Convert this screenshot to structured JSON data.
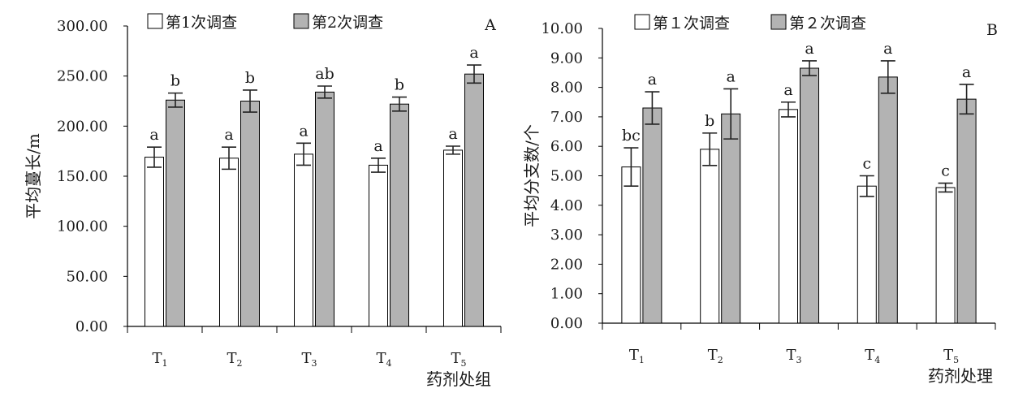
{
  "chart_data": [
    {
      "panel": "A",
      "type": "bar",
      "ylabel": "平均蔓长/m",
      "xlabel": "药剂处组",
      "ylim": [
        0,
        300
      ],
      "yticks": [
        "0.00",
        "50.00",
        "100.00",
        "150.00",
        "200.00",
        "250.00",
        "300.00"
      ],
      "categories": [
        {
          "base": "T",
          "sub": "1"
        },
        {
          "base": "T",
          "sub": "2"
        },
        {
          "base": "T",
          "sub": "3"
        },
        {
          "base": "T",
          "sub": "4"
        },
        {
          "base": "T",
          "sub": "5"
        }
      ],
      "series": [
        {
          "name": "第1次调查",
          "color": "#ffffff",
          "values": [
            169,
            168,
            172,
            161,
            176
          ],
          "errors": [
            10,
            11,
            11,
            7,
            4
          ],
          "labels": [
            "a",
            "a",
            "a",
            "a",
            "a"
          ]
        },
        {
          "name": "第2次调查",
          "color": "#b3b3b3",
          "values": [
            226,
            225,
            234,
            222,
            252
          ],
          "errors": [
            7,
            11,
            6,
            7,
            9
          ],
          "labels": [
            "b",
            "b",
            "ab",
            "b",
            "a"
          ]
        }
      ],
      "grid": false,
      "legend": "top"
    },
    {
      "panel": "B",
      "type": "bar",
      "ylabel": "平均分支数/个",
      "xlabel": "药剂处理",
      "ylim": [
        0,
        10
      ],
      "yticks": [
        "0.00",
        "1.00",
        "2.00",
        "3.00",
        "4.00",
        "5.00",
        "6.00",
        "7.00",
        "8.00",
        "9.00",
        "10.00"
      ],
      "categories": [
        {
          "base": "T",
          "sub": "1"
        },
        {
          "base": "T",
          "sub": "2"
        },
        {
          "base": "T",
          "sub": "3"
        },
        {
          "base": "T",
          "sub": "4"
        },
        {
          "base": "T",
          "sub": "5"
        }
      ],
      "series": [
        {
          "name": "第１次调查",
          "color": "#ffffff",
          "values": [
            5.3,
            5.9,
            7.25,
            4.65,
            4.6
          ],
          "errors": [
            0.65,
            0.55,
            0.25,
            0.35,
            0.15
          ],
          "labels": [
            "bc",
            "b",
            "a",
            "c",
            "c"
          ]
        },
        {
          "name": "第２次调查",
          "color": "#b3b3b3",
          "values": [
            7.3,
            7.1,
            8.65,
            8.35,
            7.6
          ],
          "errors": [
            0.55,
            0.85,
            0.25,
            0.55,
            0.5
          ],
          "labels": [
            "a",
            "a",
            "a",
            "a",
            "a"
          ]
        }
      ],
      "grid": false,
      "legend": "top"
    }
  ]
}
